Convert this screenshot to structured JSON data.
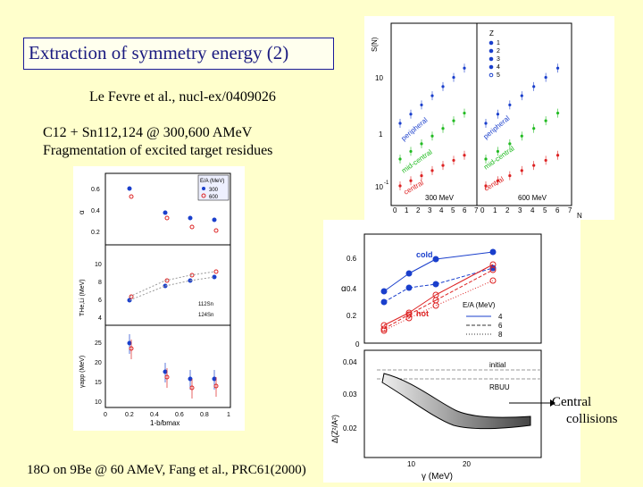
{
  "slide": {
    "title": "Extraction of symmetry energy  (2)",
    "reference": "Le Fevre et al., nucl-ex/0409026",
    "reaction": "C12 + Sn112,124 @ 300,600 AMeV",
    "subtitle": "Fragmentation of excited target residues",
    "bottom_reference": "18O on  9Be @ 60 AMeV, Fang et al., PRC61(2000)",
    "central_label_1": "Central",
    "central_label_2": "collisions"
  },
  "top_right_plot": {
    "ylabel": "S(N)",
    "xlabel": "N",
    "y_ticks": [
      "10",
      "1",
      "10"
    ],
    "y_minus": "-1",
    "x_ticks": [
      "0",
      "1",
      "2",
      "3",
      "4",
      "5",
      "6",
      "7"
    ],
    "legend_title": "Z",
    "legend": [
      "1",
      "2",
      "3",
      "4",
      "5"
    ],
    "left_energy": "300 MeV",
    "right_energy": "600 MeV",
    "labels": [
      "peripheral",
      "mid-central",
      "central"
    ],
    "series_colors": [
      "#1a3fcc",
      "#22bb22",
      "#dd2222"
    ]
  },
  "left_plots": {
    "alpha_label": "α",
    "legend_title": "E/A (MeV)",
    "legend": [
      "300",
      "600"
    ],
    "t_label": "THe,Li (MeV)",
    "t_legend": [
      "112Sn",
      "124Sn"
    ],
    "gamma_label": "γapp (MeV)",
    "xlabel": "1-b/bmax",
    "alpha_ticks": [
      "0.6",
      "0.4",
      "0.2"
    ],
    "t_ticks": [
      "10",
      "8",
      "6",
      "4"
    ],
    "g_ticks": [
      "25",
      "20",
      "15",
      "10"
    ],
    "x_ticks": [
      "0",
      "0.2",
      "0.4",
      "0.6",
      "0.8",
      "1"
    ]
  },
  "right_plots": {
    "alpha_label": "α",
    "alpha_ticks": [
      "0.6",
      "0.4",
      "0.2",
      "0"
    ],
    "cold": "cold",
    "hot": "hot",
    "legend_title": "E/A (MeV)",
    "legend": [
      "4",
      "6",
      "8"
    ],
    "z_label": "Δ(Z²/A²)",
    "z_ticks": [
      "0.04",
      "0.03",
      "0.02"
    ],
    "initial": "initial",
    "rbuu": "RBUU",
    "xlabel": "γ (MeV)",
    "x_ticks": [
      "10",
      "20"
    ]
  }
}
